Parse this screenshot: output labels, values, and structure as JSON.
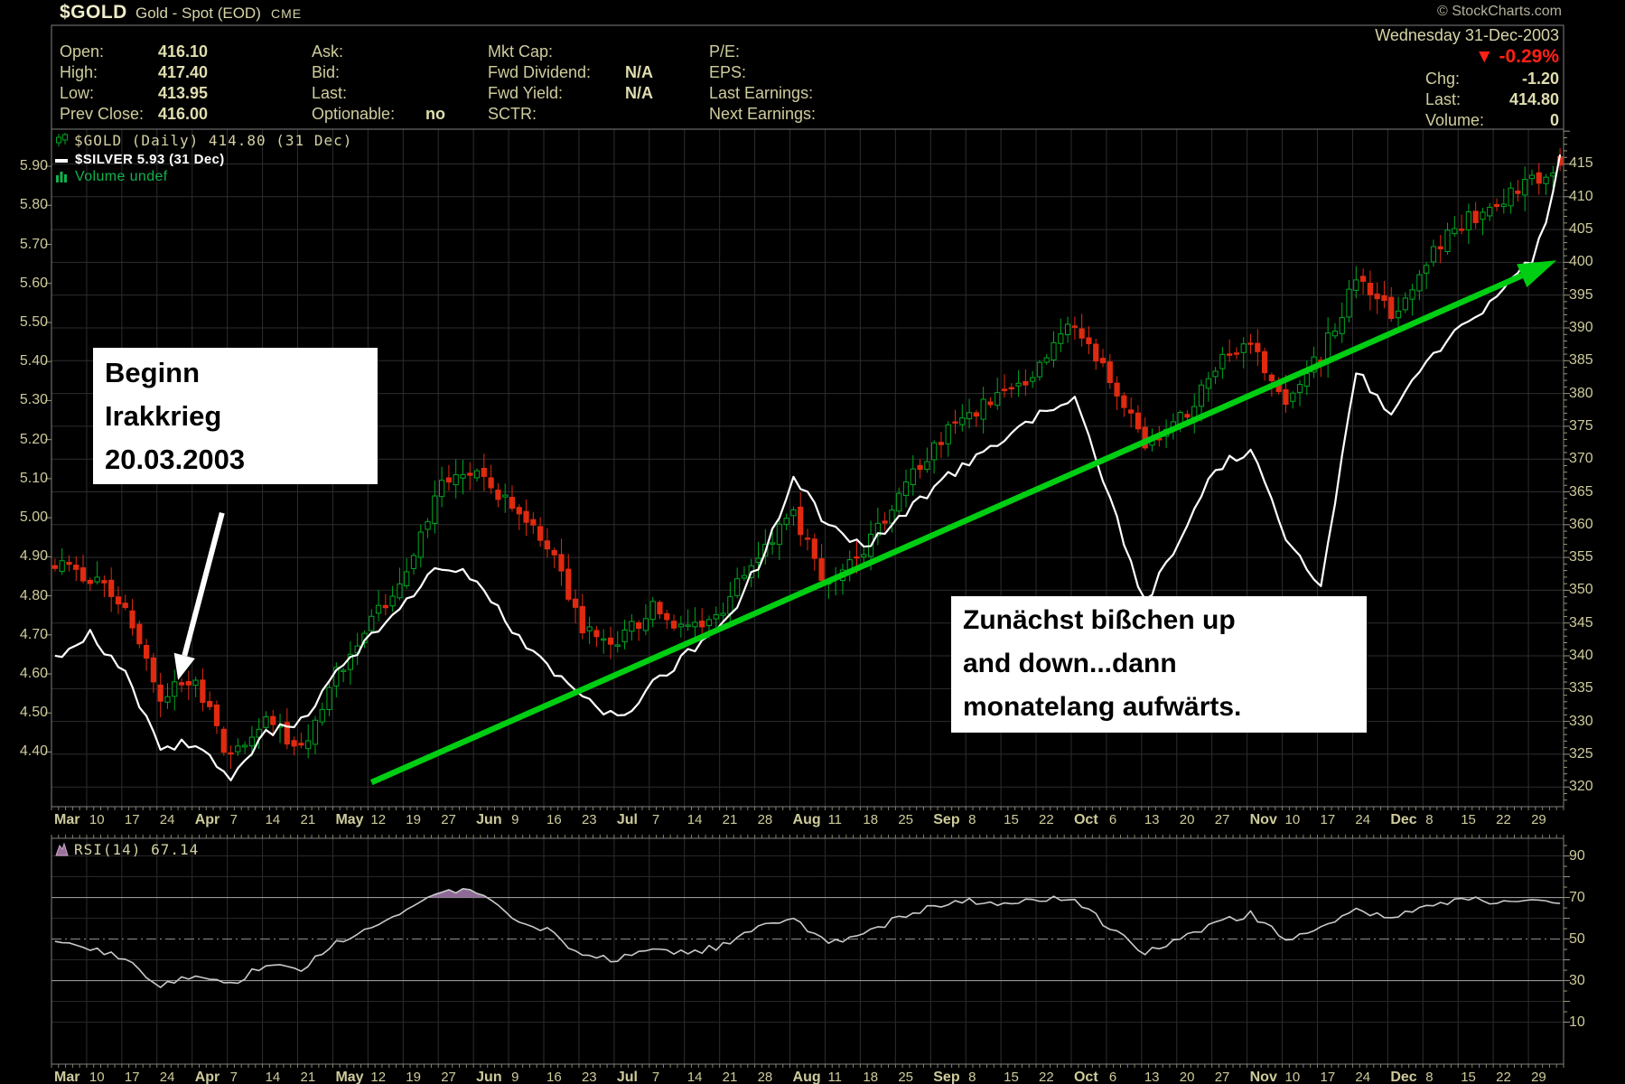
{
  "header": {
    "symbol": "$GOLD",
    "description": "Gold - Spot (EOD)",
    "exchange": "CME",
    "copyright": "© StockCharts.com"
  },
  "quote": {
    "columns": [
      {
        "rows": [
          {
            "label": "Open:",
            "value": "416.10"
          },
          {
            "label": "High:",
            "value": "417.40"
          },
          {
            "label": "Low:",
            "value": "413.95"
          },
          {
            "label": "Prev Close:",
            "value": "416.00"
          }
        ]
      },
      {
        "rows": [
          {
            "label": "Ask:",
            "value": ""
          },
          {
            "label": "Bid:",
            "value": ""
          },
          {
            "label": "Last:",
            "value": ""
          },
          {
            "label": "Optionable:",
            "value": "no"
          }
        ]
      },
      {
        "rows": [
          {
            "label": "Mkt Cap:",
            "value": ""
          },
          {
            "label": "Fwd Dividend:",
            "value": "N/A"
          },
          {
            "label": "Fwd Yield:",
            "value": "N/A"
          },
          {
            "label": "SCTR:",
            "value": ""
          }
        ]
      },
      {
        "rows": [
          {
            "label": "P/E:",
            "value": ""
          },
          {
            "label": "EPS:",
            "value": ""
          },
          {
            "label": "Last Earnings:",
            "value": ""
          },
          {
            "label": "Next Earnings:",
            "value": ""
          }
        ]
      }
    ],
    "date": "Wednesday 31-Dec-2003",
    "pct_icon": "▼",
    "pct_change": "-0.29%",
    "chg_label": "Chg:",
    "chg_value": "-1.20",
    "last_label": "Last:",
    "last_value": "414.80",
    "volume_label": "Volume:",
    "volume_value": "0"
  },
  "legend": {
    "gold": "$GOLD (Daily) 414.80 (31 Dec)",
    "silver": "$SILVER 5.93 (31 Dec)",
    "volume": "Volume undef",
    "rsi": "RSI(14) 67.14"
  },
  "annotations": {
    "box1_lines": [
      "Beginn",
      "Irakkrieg",
      "20.03.2003"
    ],
    "box2_lines": [
      "Zunächst bißchen up",
      "and down...dann",
      "monatelang aufwärts."
    ]
  },
  "chart_data": {
    "type": "candlestick+line",
    "symbol": "$GOLD",
    "overlay_symbol": "$SILVER",
    "indicator": "RSI(14)",
    "indicator_last_value": 67.14,
    "x_labels": [
      "Mar",
      "10",
      "17",
      "24",
      "Apr",
      "7",
      "14",
      "21",
      "May",
      "12",
      "19",
      "27",
      "Jun",
      "9",
      "16",
      "23",
      "Jul",
      "7",
      "14",
      "21",
      "28",
      "Aug",
      "11",
      "18",
      "25",
      "Sep",
      "8",
      "15",
      "22",
      "Oct",
      "6",
      "13",
      "20",
      "27",
      "Nov",
      "10",
      "17",
      "24",
      "Dec",
      "8",
      "15",
      "22",
      "29"
    ],
    "right_axis_ticks": [
      415,
      410,
      405,
      400,
      395,
      390,
      385,
      380,
      375,
      370,
      365,
      360,
      355,
      350,
      345,
      340,
      335,
      330,
      325,
      320
    ],
    "left_axis_ticks": [
      "5.90",
      "5.80",
      "5.70",
      "5.60",
      "5.50",
      "5.40",
      "5.30",
      "5.20",
      "5.10",
      "5.00",
      "4.90",
      "4.80",
      "4.70",
      "4.60",
      "4.50",
      "4.40"
    ],
    "rsi_axis_ticks": [
      90,
      70,
      50,
      30,
      10
    ],
    "weeks": 43,
    "days_per_week": 5,
    "gold_weekly_close": [
      354,
      352,
      348,
      334,
      336,
      324,
      330,
      326,
      337,
      345,
      352,
      366,
      368,
      363,
      357,
      344,
      342,
      347,
      344,
      347,
      356,
      361,
      350,
      356,
      364,
      372,
      377,
      380,
      384,
      391,
      382,
      372,
      376,
      384,
      388,
      379,
      386,
      397,
      392,
      400,
      406,
      409,
      412,
      414.8
    ],
    "silver_weekly": [
      4.64,
      4.7,
      4.6,
      4.42,
      4.42,
      4.33,
      4.45,
      4.48,
      4.6,
      4.7,
      4.78,
      4.88,
      4.84,
      4.72,
      4.62,
      4.54,
      4.48,
      4.58,
      4.65,
      4.72,
      4.88,
      5.1,
      4.98,
      4.92,
      5.0,
      5.08,
      5.14,
      5.2,
      5.26,
      5.3,
      5.05,
      4.78,
      4.95,
      5.12,
      5.18,
      4.95,
      4.82,
      5.38,
      5.27,
      5.4,
      5.5,
      5.56,
      5.66,
      5.93
    ],
    "rsi_weekly": [
      50,
      46,
      40,
      28,
      33,
      28,
      38,
      36,
      48,
      56,
      63,
      74,
      72,
      61,
      54,
      42,
      40,
      46,
      43,
      47,
      55,
      60,
      48,
      53,
      60,
      66,
      68,
      67,
      69,
      69.5,
      55,
      44,
      50,
      58,
      62,
      50,
      55,
      64,
      60,
      67,
      69,
      68,
      69,
      67.14
    ],
    "last_candle": {
      "open": 416.1,
      "high": 417.4,
      "low": 413.95,
      "close": 414.8
    },
    "gold_range": [
      317.0,
      420.3
    ],
    "silver_range": [
      4.26,
      5.995
    ],
    "rsi_panel_range": [
      -10.2,
      98.5
    ],
    "rsi_lines": {
      "overbought": 70,
      "midline": 50,
      "oversold": 30
    },
    "trend_arrow": {
      "from_week": 9.1,
      "from_price": 320.7,
      "to_week": 42.8,
      "to_price": 400.3
    },
    "event_arrow": {
      "from_week": 4.85,
      "from_price": 361.8,
      "to_week": 3.6,
      "to_price": 336.3
    },
    "colors": {
      "up": "#00a823",
      "down": "#e02a10",
      "overlay_line": "#ffffff",
      "trend_arrow": "#00ce12",
      "rsi_line": "#c9c9c9",
      "rsi_fill": "#8e6b96",
      "accent_red": "#ff2016",
      "label": "#cecb9c",
      "grid": "#2d2d2d",
      "frame": "#7f7f7f"
    }
  }
}
